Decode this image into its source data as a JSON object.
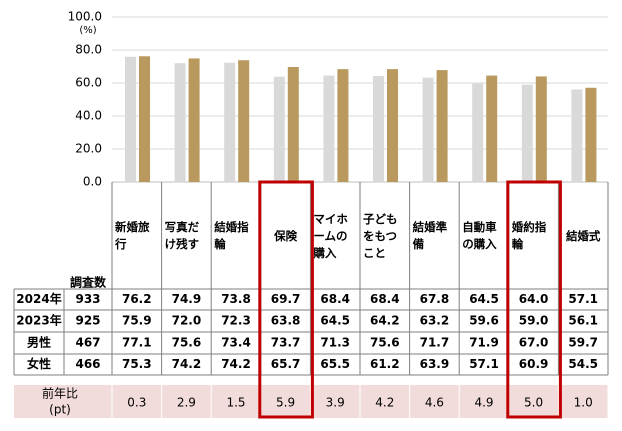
{
  "chart_data": {
    "type": "bar",
    "y_unit": "(%)",
    "categories": [
      "新婚旅行",
      "写真だけ残す",
      "結婚指輪",
      "保険",
      "マイホームの購入",
      "子どもをもつこと",
      "結婚準備",
      "自動車の購入",
      "婚約指輪",
      "結婚式"
    ],
    "series": [
      {
        "name": "2024年",
        "n": 933,
        "color": "#b9995e",
        "values": [
          76.2,
          74.9,
          73.8,
          69.7,
          68.4,
          68.4,
          67.8,
          64.5,
          64.0,
          57.1
        ],
        "value_labels": [
          "76.2",
          "74.9",
          "73.8",
          "69.7",
          "68.4",
          "68.4",
          "67.8",
          "64.5",
          "64.0",
          "57.1"
        ]
      },
      {
        "name": "2023年",
        "n": 925,
        "color": "#d9d9d9",
        "values": [
          75.9,
          72.0,
          72.3,
          63.8,
          64.5,
          64.2,
          63.2,
          59.6,
          59.0,
          56.1
        ],
        "value_labels": [
          "75.9",
          "72.0",
          "72.3",
          "63.8",
          "64.5",
          "64.2",
          "63.2",
          "59.6",
          "59.0",
          "56.1"
        ]
      }
    ],
    "ylim": [
      0,
      100
    ],
    "yticks": [
      {
        "value": 0,
        "label": "0.0"
      },
      {
        "value": 20,
        "label": "20.0"
      },
      {
        "value": 40,
        "label": "40.0"
      },
      {
        "value": 60,
        "label": "60.0"
      },
      {
        "value": 80,
        "label": "80.0"
      },
      {
        "value": 100,
        "label": "100.0"
      }
    ],
    "grid": true
  },
  "table": {
    "count_header": "調査数",
    "rows": [
      {
        "label": "男性",
        "n": 467,
        "values": [
          "77.1",
          "75.6",
          "73.4",
          "73.7",
          "71.3",
          "75.6",
          "71.7",
          "71.9",
          "67.0",
          "59.7"
        ]
      },
      {
        "label": "女性",
        "n": 466,
        "values": [
          "75.3",
          "74.2",
          "74.2",
          "65.7",
          "65.5",
          "61.2",
          "63.9",
          "57.1",
          "60.9",
          "54.5"
        ]
      }
    ],
    "diff": {
      "label": "前年比",
      "unit": "(pt)",
      "values": [
        "0.3",
        "2.9",
        "1.5",
        "5.9",
        "3.9",
        "4.2",
        "4.6",
        "4.9",
        "5.0",
        "1.0"
      ]
    }
  }
}
